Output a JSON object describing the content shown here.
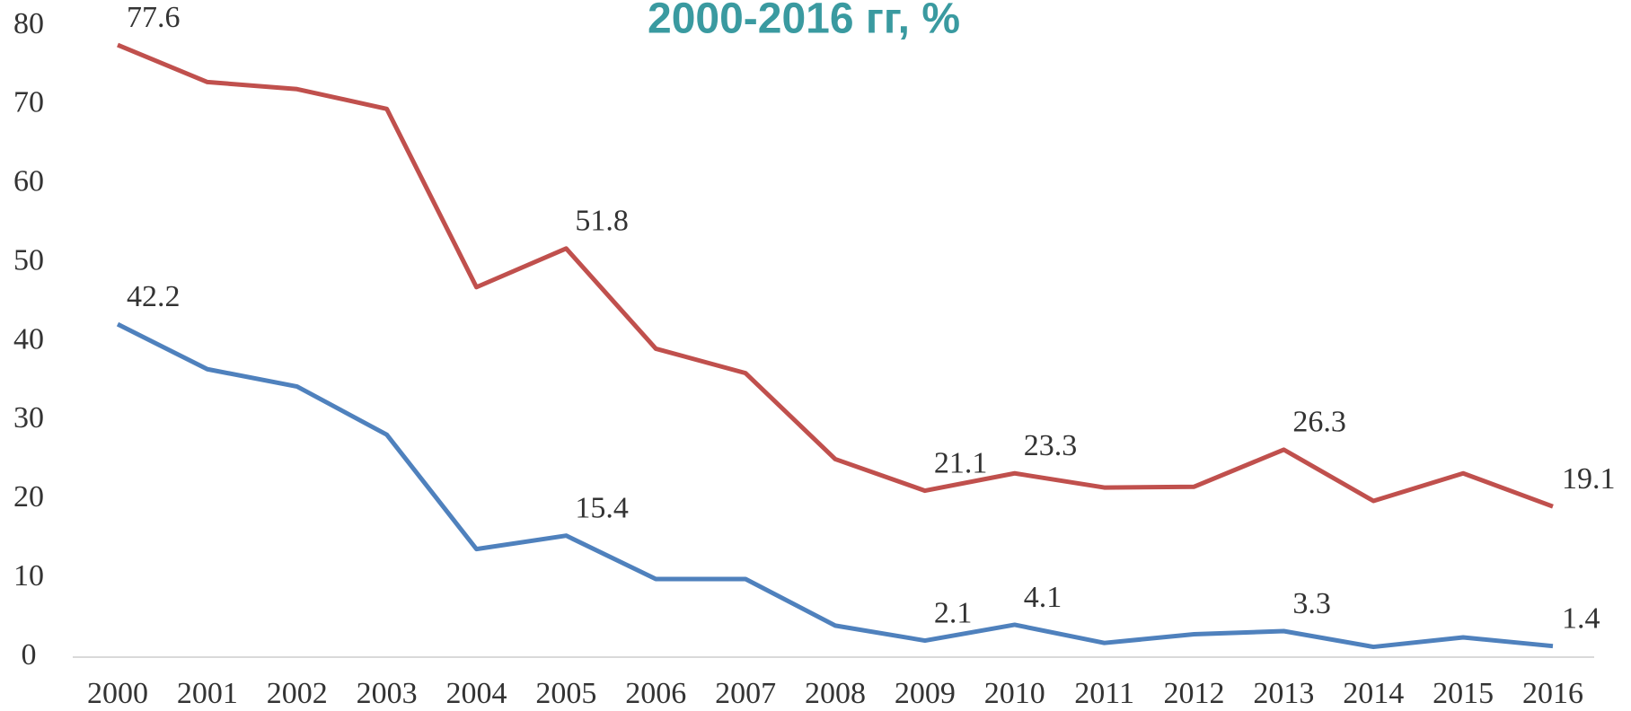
{
  "chart_data": {
    "type": "line",
    "title": "2000-2016 гг, %",
    "categories": [
      "2000",
      "2001",
      "2002",
      "2003",
      "2004",
      "2005",
      "2006",
      "2007",
      "2008",
      "2009",
      "2010",
      "2011",
      "2012",
      "2013",
      "2014",
      "2015",
      "2016"
    ],
    "series": [
      {
        "color": "#c0504d",
        "values": [
          77.6,
          72.9,
          72.0,
          69.5,
          46.9,
          51.8,
          39.1,
          36.0,
          25.1,
          21.1,
          23.3,
          21.5,
          21.6,
          26.3,
          19.8,
          23.3,
          19.1
        ],
        "value_labels": [
          "77.6",
          null,
          null,
          null,
          null,
          "51.8",
          null,
          null,
          null,
          "21.1",
          "23.3",
          null,
          null,
          "26.3",
          null,
          null,
          "19.1"
        ]
      },
      {
        "color": "#4f81bd",
        "values": [
          42.2,
          36.5,
          34.3,
          28.2,
          13.7,
          15.4,
          9.9,
          9.9,
          4.0,
          2.1,
          4.1,
          1.8,
          2.9,
          3.3,
          1.3,
          2.5,
          1.4
        ],
        "value_labels": [
          "42.2",
          null,
          null,
          null,
          null,
          "15.4",
          null,
          null,
          null,
          "2.1",
          "4.1",
          null,
          null,
          "3.3",
          null,
          null,
          "1.4"
        ]
      }
    ],
    "ylim": [
      0,
      80
    ],
    "yticks": [
      0,
      10,
      20,
      30,
      40,
      50,
      60,
      70,
      80
    ],
    "grid": false
  }
}
